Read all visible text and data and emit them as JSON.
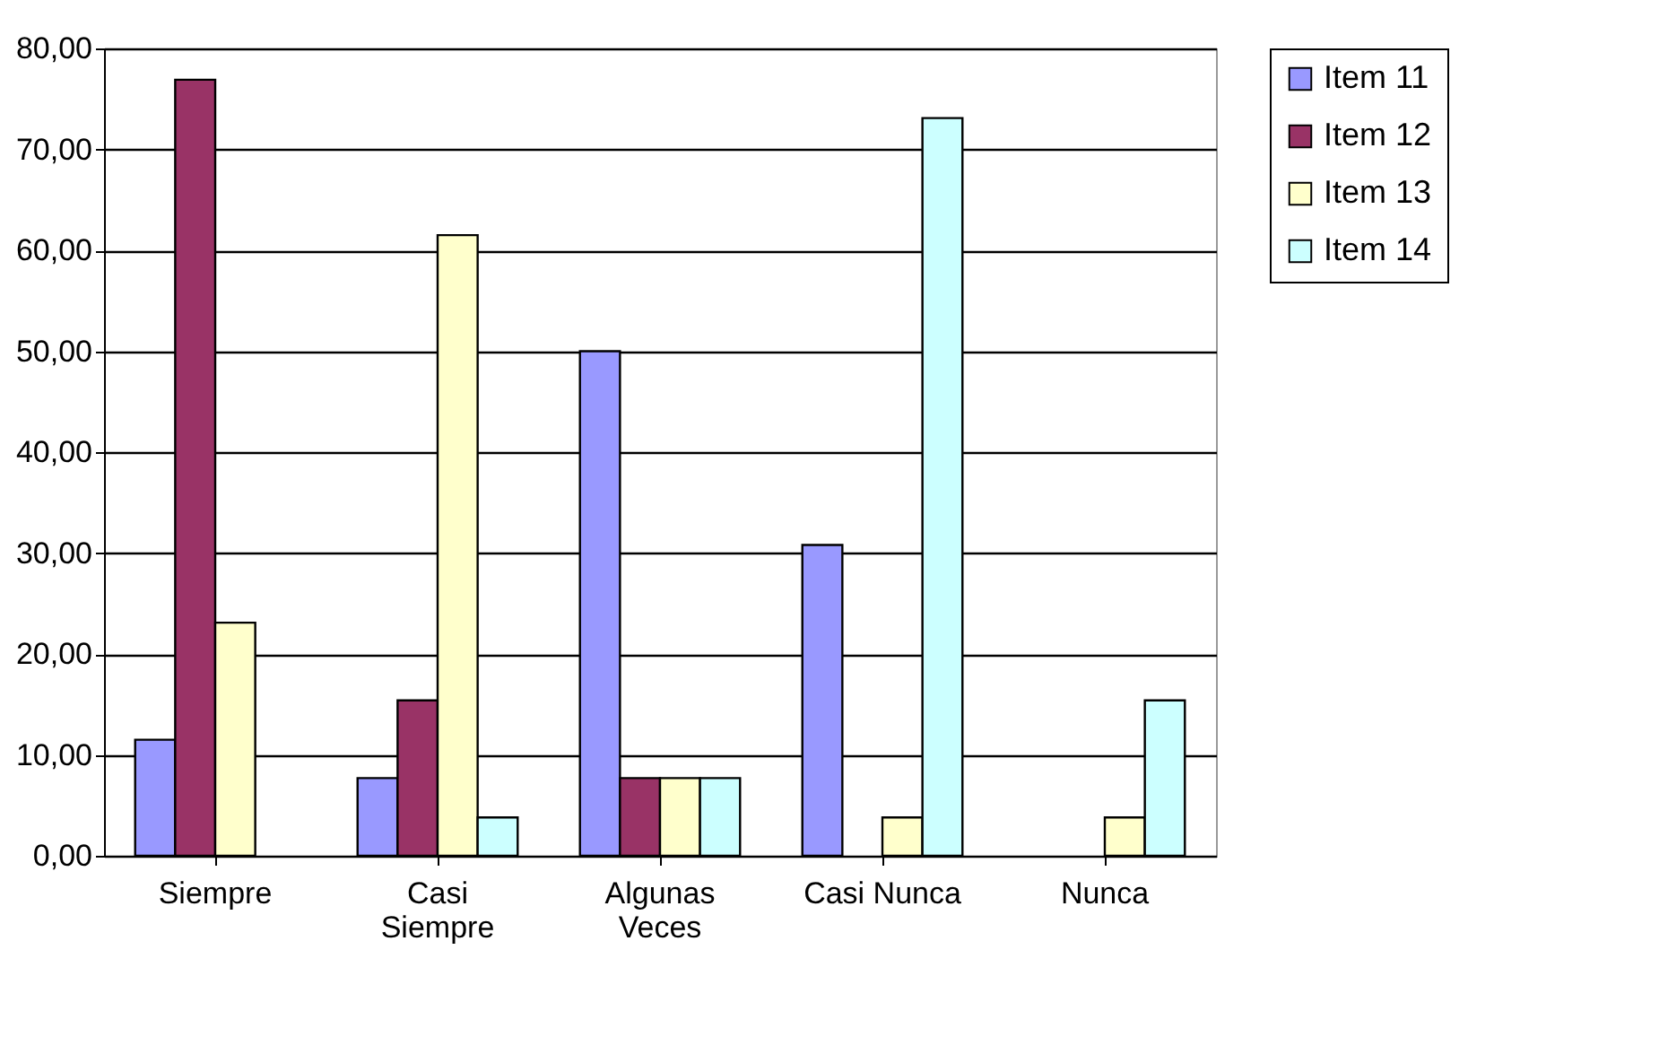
{
  "chart_data": {
    "type": "bar",
    "categories": [
      "Siempre",
      "Casi Siempre",
      "Algunas Veces",
      "Casi Nunca",
      "Nunca"
    ],
    "series": [
      {
        "name": "Item 11",
        "color": "#9999ff",
        "values": [
          11.5,
          7.7,
          50,
          30.8,
          0
        ]
      },
      {
        "name": "Item 12",
        "color": "#993366",
        "values": [
          76.9,
          15.4,
          7.7,
          0,
          0
        ]
      },
      {
        "name": "Item 13",
        "color": "#ffffcc",
        "values": [
          23.1,
          61.5,
          7.7,
          3.8,
          3.8
        ]
      },
      {
        "name": "Item 14",
        "color": "#ccffff",
        "values": [
          0,
          3.8,
          7.7,
          73.1,
          15.4
        ]
      }
    ],
    "ylim": [
      0,
      80
    ],
    "yticks": [
      {
        "value": 0,
        "label": "0,00"
      },
      {
        "value": 10,
        "label": "10,00"
      },
      {
        "value": 20,
        "label": "20,00"
      },
      {
        "value": 30,
        "label": "30,00"
      },
      {
        "value": 40,
        "label": "40,00"
      },
      {
        "value": 50,
        "label": "50,00"
      },
      {
        "value": 60,
        "label": "60,00"
      },
      {
        "value": 70,
        "label": "70,00"
      },
      {
        "value": 80,
        "label": "80,00"
      }
    ],
    "grid": "y",
    "legend": "right"
  }
}
